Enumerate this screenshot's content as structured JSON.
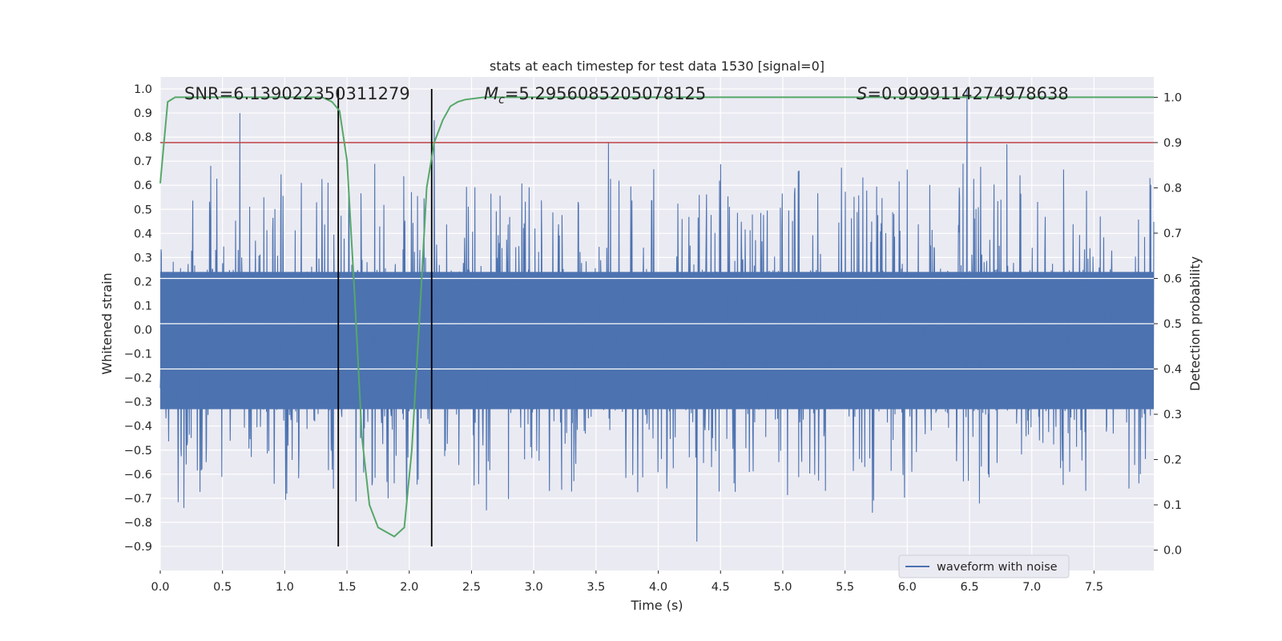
{
  "chart_data": {
    "type": "line",
    "title": "stats at each timestep for test data 1530 [signal=0]",
    "xlabel": "Time (s)",
    "ylabel": "Whitened strain",
    "y2label": "Detection probability",
    "xlim": [
      0.0,
      7.98
    ],
    "ylim": [
      -1.0,
      1.05
    ],
    "y2lim": [
      -0.045,
      1.045
    ],
    "xticks": [
      0.0,
      0.5,
      1.0,
      1.5,
      2.0,
      2.5,
      3.0,
      3.5,
      4.0,
      4.5,
      5.0,
      5.5,
      6.0,
      6.5,
      7.0,
      7.5
    ],
    "xtick_labels": [
      "0.0",
      "0.5",
      "1.0",
      "1.5",
      "2.0",
      "2.5",
      "3.0",
      "3.5",
      "4.0",
      "4.5",
      "5.0",
      "5.5",
      "6.0",
      "6.5",
      "7.0",
      "7.5"
    ],
    "yticks": [
      1.0,
      0.9,
      0.8,
      0.7,
      0.6,
      0.5,
      0.4,
      0.3,
      0.2,
      0.1,
      0.0,
      -0.1,
      -0.2,
      -0.3,
      -0.4,
      -0.5,
      -0.6,
      -0.7,
      -0.8,
      -0.9
    ],
    "ytick_labels": [
      "1.0",
      "0.9",
      "0.8",
      "0.7",
      "0.6",
      "0.5",
      "0.4",
      "0.3",
      "0.2",
      "0.1",
      "0.0",
      "−0.1",
      "−0.2",
      "−0.3",
      "−0.4",
      "−0.5",
      "−0.6",
      "−0.7",
      "−0.8",
      "−0.9"
    ],
    "y2ticks": [
      1.0,
      0.9,
      0.8,
      0.7,
      0.6,
      0.5,
      0.4,
      0.3,
      0.2,
      0.1,
      0.0
    ],
    "y2tick_labels": [
      "1.0",
      "0.9",
      "0.8",
      "0.7",
      "0.6",
      "0.5",
      "0.4",
      "0.3",
      "0.2",
      "0.1",
      "0.0"
    ],
    "grid": true,
    "legend": {
      "position": "lower-right",
      "entries": [
        {
          "label": "waveform with noise",
          "color": "#4c72b0"
        }
      ]
    },
    "annotations": {
      "snr": "SNR=6.139022350311279",
      "mc_symbol": "M",
      "mc_sub": "c",
      "mc_value": "=5.2956085205078125",
      "s_symbol": "S",
      "s_value": "=0.9999114274978638"
    },
    "series": [
      {
        "name": "waveform with noise",
        "axis": "left",
        "color": "#4c72b0",
        "kind": "dense noise waveform",
        "duration": 7.98,
        "core_range": [
          -0.33,
          0.24
        ],
        "peaks": [
          {
            "t": 0.64,
            "v": 0.9
          },
          {
            "t": 6.48,
            "v": 1.0
          },
          {
            "t": 2.2,
            "v": 0.87
          },
          {
            "t": 3.6,
            "v": 0.78
          },
          {
            "t": 6.8,
            "v": 0.77
          },
          {
            "t": 4.31,
            "v": -0.88
          },
          {
            "t": 0.19,
            "v": -0.74
          },
          {
            "t": 2.62,
            "v": -0.75
          },
          {
            "t": 5.72,
            "v": -0.76
          },
          {
            "t": 1.98,
            "v": -0.65
          }
        ]
      },
      {
        "name": "detection probability",
        "axis": "right",
        "color": "#55a868",
        "x": [
          0.0,
          0.06,
          0.12,
          0.2,
          0.6,
          1.0,
          1.3,
          1.38,
          1.44,
          1.5,
          1.56,
          1.62,
          1.68,
          1.75,
          1.88,
          1.96,
          2.02,
          2.08,
          2.14,
          2.2,
          2.27,
          2.33,
          2.39,
          2.45,
          2.6,
          3.0,
          4.0,
          5.0,
          6.0,
          7.0,
          7.98
        ],
        "values": [
          0.81,
          0.99,
          1.0,
          1.0,
          1.0,
          1.0,
          1.0,
          0.99,
          0.97,
          0.86,
          0.57,
          0.25,
          0.1,
          0.05,
          0.03,
          0.05,
          0.22,
          0.5,
          0.8,
          0.9,
          0.95,
          0.98,
          0.99,
          0.995,
          1.0,
          1.0,
          1.0,
          1.0,
          1.0,
          1.0,
          1.0
        ]
      }
    ],
    "threshold": {
      "axis": "right",
      "value": 0.9,
      "color": "#c44e52"
    },
    "vlines": [
      1.43,
      2.18
    ]
  }
}
